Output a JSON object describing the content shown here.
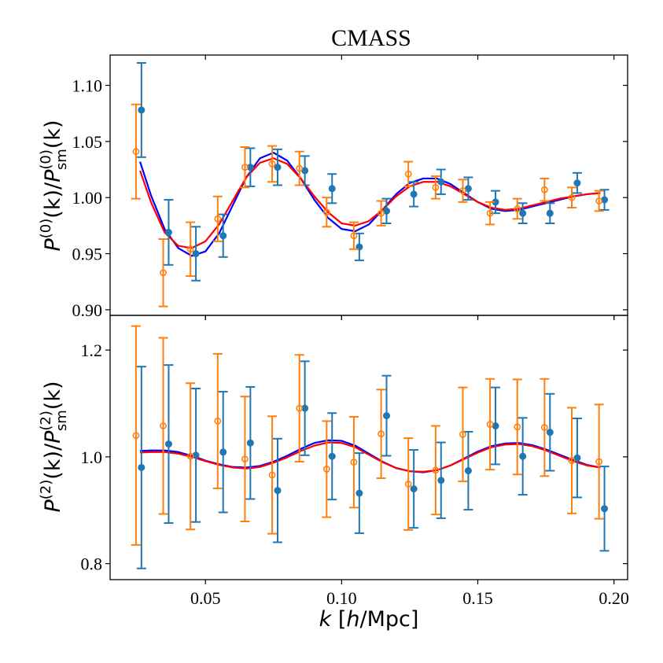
{
  "chart_data": [
    {
      "type": "scatter",
      "panel": "monopole",
      "title": "CMASS",
      "xlabel": "",
      "ylabel": "P^(0)(k)/P_sm^(0)(k)",
      "ylabel_parts": {
        "main": "P",
        "sup1": "(0)",
        "mid": "(k)/",
        "main2": "P",
        "sup2": "(0)",
        "sub2": "sm",
        "end": "(k)"
      },
      "xlim": [
        0.015,
        0.205
      ],
      "ylim": [
        0.895,
        1.127
      ],
      "yticks": [
        0.9,
        0.95,
        1.0,
        1.05,
        1.1
      ],
      "ytick_labels": [
        "0.90",
        "0.95",
        "1.00",
        "1.05",
        "1.10"
      ],
      "xticks": [
        0.05,
        0.1,
        0.15,
        0.2
      ],
      "xtick_labels": [],
      "grid": false,
      "series": [
        {
          "name": "data (filled)",
          "color": "#1f77b4",
          "marker": "filled-circle",
          "x": [
            0.0265,
            0.0365,
            0.0465,
            0.0565,
            0.0665,
            0.0765,
            0.0865,
            0.0965,
            0.1065,
            0.1165,
            0.1265,
            0.1365,
            0.1465,
            0.1565,
            0.1665,
            0.1765,
            0.1865,
            0.1965
          ],
          "y": [
            1.078,
            0.969,
            0.95,
            0.966,
            1.027,
            1.027,
            1.024,
            1.008,
            0.956,
            0.988,
            1.003,
            1.014,
            1.008,
            0.996,
            0.986,
            0.986,
            1.013,
            0.998
          ],
          "err": [
            0.042,
            0.029,
            0.024,
            0.019,
            0.017,
            0.016,
            0.013,
            0.013,
            0.012,
            0.011,
            0.011,
            0.011,
            0.01,
            0.01,
            0.009,
            0.009,
            0.009,
            0.009
          ]
        },
        {
          "name": "data (open)",
          "color": "#ff7f0e",
          "marker": "open-circle",
          "x": [
            0.0245,
            0.0345,
            0.0445,
            0.0545,
            0.0645,
            0.0745,
            0.0845,
            0.0945,
            0.1045,
            0.1145,
            0.1245,
            0.1345,
            0.1445,
            0.1545,
            0.1645,
            0.1745,
            0.1845,
            0.1945
          ],
          "y": [
            1.041,
            0.933,
            0.954,
            0.981,
            1.027,
            1.03,
            1.026,
            0.987,
            0.966,
            0.986,
            1.021,
            1.009,
            1.006,
            0.986,
            0.99,
            1.007,
            1.0,
            0.997
          ],
          "err": [
            0.042,
            0.03,
            0.024,
            0.02,
            0.018,
            0.016,
            0.015,
            0.013,
            0.012,
            0.011,
            0.011,
            0.01,
            0.01,
            0.01,
            0.009,
            0.01,
            0.009,
            0.009
          ]
        },
        {
          "name": "model (blue)",
          "color": "#0000ff",
          "type": "line",
          "x": [
            0.026,
            0.03,
            0.035,
            0.04,
            0.045,
            0.05,
            0.055,
            0.06,
            0.065,
            0.07,
            0.075,
            0.08,
            0.085,
            0.09,
            0.095,
            0.1,
            0.105,
            0.11,
            0.115,
            0.12,
            0.125,
            0.13,
            0.135,
            0.14,
            0.145,
            0.15,
            0.155,
            0.16,
            0.165,
            0.17,
            0.175,
            0.18,
            0.185,
            0.19,
            0.195
          ],
          "y": [
            1.032,
            1.002,
            0.972,
            0.955,
            0.948,
            0.952,
            0.968,
            0.993,
            1.018,
            1.035,
            1.04,
            1.033,
            1.017,
            0.998,
            0.982,
            0.972,
            0.97,
            0.976,
            0.989,
            1.003,
            1.013,
            1.017,
            1.017,
            1.012,
            1.004,
            0.996,
            0.99,
            0.988,
            0.989,
            0.992,
            0.995,
            0.998,
            1.001,
            1.003,
            1.004
          ]
        },
        {
          "name": "model (red)",
          "color": "#ff0000",
          "type": "line",
          "x": [
            0.026,
            0.03,
            0.035,
            0.04,
            0.045,
            0.05,
            0.055,
            0.06,
            0.065,
            0.07,
            0.075,
            0.08,
            0.085,
            0.09,
            0.095,
            0.1,
            0.105,
            0.11,
            0.115,
            0.12,
            0.125,
            0.13,
            0.135,
            0.14,
            0.145,
            0.15,
            0.155,
            0.16,
            0.165,
            0.17,
            0.175,
            0.18,
            0.185,
            0.19,
            0.195
          ],
          "y": [
            1.024,
            0.996,
            0.969,
            0.957,
            0.955,
            0.961,
            0.976,
            0.997,
            1.018,
            1.031,
            1.035,
            1.03,
            1.017,
            1.001,
            0.987,
            0.977,
            0.975,
            0.979,
            0.989,
            1.001,
            1.01,
            1.014,
            1.014,
            1.01,
            1.003,
            0.996,
            0.991,
            0.989,
            0.99,
            0.993,
            0.996,
            0.999,
            1.001,
            1.003,
            1.004
          ]
        }
      ]
    },
    {
      "type": "scatter",
      "panel": "quadrupole",
      "title": "",
      "xlabel": "k [h/Mpc]",
      "xlabel_parts": {
        "k": "k",
        "open": " [",
        "h": "h",
        "rest": "/Mpc]"
      },
      "ylabel": "P^(2)(k)/P_sm^(2)(k)",
      "ylabel_parts": {
        "main": "P",
        "sup1": "(2)",
        "mid": "(k)/",
        "main2": "P",
        "sup2": "(2)",
        "sub2": "sm",
        "end": "(k)"
      },
      "xlim": [
        0.015,
        0.205
      ],
      "ylim": [
        0.77,
        1.265
      ],
      "yticks": [
        0.8,
        1.0,
        1.2
      ],
      "ytick_labels": [
        "0.8",
        "1.0",
        "1.2"
      ],
      "xticks": [
        0.05,
        0.1,
        0.15,
        0.2
      ],
      "xtick_labels": [
        "0.05",
        "0.10",
        "0.15",
        "0.20"
      ],
      "grid": false,
      "series": [
        {
          "name": "data (filled)",
          "color": "#1f77b4",
          "marker": "filled-circle",
          "x": [
            0.0265,
            0.0365,
            0.0465,
            0.0565,
            0.0665,
            0.0765,
            0.0865,
            0.0965,
            0.1065,
            0.1165,
            0.1265,
            0.1365,
            0.1465,
            0.1565,
            0.1665,
            0.1765,
            0.1865,
            0.1965
          ],
          "y": [
            0.98,
            1.024,
            1.003,
            1.009,
            1.026,
            0.937,
            1.091,
            1.001,
            0.932,
            1.077,
            0.94,
            0.956,
            0.974,
            1.058,
            1.001,
            1.046,
            0.998,
            0.903
          ],
          "err": [
            0.189,
            0.148,
            0.125,
            0.113,
            0.105,
            0.097,
            0.088,
            0.081,
            0.075,
            0.075,
            0.073,
            0.071,
            0.073,
            0.072,
            0.072,
            0.072,
            0.074,
            0.079
          ]
        },
        {
          "name": "data (open)",
          "color": "#ff7f0e",
          "marker": "open-circle",
          "x": [
            0.0245,
            0.0345,
            0.0445,
            0.0545,
            0.0645,
            0.0745,
            0.0845,
            0.0945,
            0.1045,
            0.1145,
            0.1245,
            0.1345,
            0.1445,
            0.1545,
            0.1645,
            0.1745,
            0.1845,
            0.1945
          ],
          "y": [
            1.04,
            1.058,
            1.001,
            1.067,
            0.996,
            0.966,
            1.091,
            0.977,
            0.99,
            1.043,
            0.949,
            0.975,
            1.042,
            1.061,
            1.056,
            1.055,
            0.993,
            0.991
          ],
          "err": [
            0.205,
            0.165,
            0.137,
            0.126,
            0.117,
            0.11,
            0.1,
            0.09,
            0.085,
            0.083,
            0.086,
            0.083,
            0.088,
            0.085,
            0.089,
            0.091,
            0.099,
            0.107
          ]
        },
        {
          "name": "model (blue)",
          "color": "#0000ff",
          "type": "line",
          "x": [
            0.026,
            0.03,
            0.035,
            0.04,
            0.045,
            0.05,
            0.055,
            0.06,
            0.065,
            0.07,
            0.075,
            0.08,
            0.085,
            0.09,
            0.095,
            0.1,
            0.105,
            0.11,
            0.115,
            0.12,
            0.125,
            0.13,
            0.135,
            0.14,
            0.145,
            0.15,
            0.155,
            0.16,
            0.165,
            0.17,
            0.175,
            0.18,
            0.185,
            0.19,
            0.195
          ],
          "y": [
            1.011,
            1.012,
            1.012,
            1.009,
            1.002,
            0.993,
            0.986,
            0.981,
            0.98,
            0.983,
            0.991,
            1.002,
            1.015,
            1.026,
            1.031,
            1.03,
            1.021,
            1.006,
            0.991,
            0.979,
            0.973,
            0.971,
            0.975,
            0.984,
            0.997,
            1.01,
            1.02,
            1.025,
            1.026,
            1.022,
            1.014,
            1.004,
            0.994,
            0.985,
            0.98
          ]
        },
        {
          "name": "model (red)",
          "color": "#ff0000",
          "type": "line",
          "x": [
            0.026,
            0.03,
            0.035,
            0.04,
            0.045,
            0.05,
            0.055,
            0.06,
            0.065,
            0.07,
            0.075,
            0.08,
            0.085,
            0.09,
            0.095,
            0.1,
            0.105,
            0.11,
            0.115,
            0.12,
            0.125,
            0.13,
            0.135,
            0.14,
            0.145,
            0.15,
            0.155,
            0.16,
            0.165,
            0.17,
            0.175,
            0.18,
            0.185,
            0.19,
            0.195
          ],
          "y": [
            1.008,
            1.009,
            1.009,
            1.006,
            1.0,
            0.992,
            0.985,
            0.98,
            0.978,
            0.981,
            0.989,
            0.999,
            1.011,
            1.021,
            1.027,
            1.026,
            1.018,
            1.004,
            0.99,
            0.979,
            0.973,
            0.972,
            0.975,
            0.984,
            0.996,
            1.008,
            1.018,
            1.023,
            1.024,
            1.02,
            1.012,
            1.002,
            0.992,
            0.984,
            0.98
          ]
        }
      ]
    }
  ]
}
